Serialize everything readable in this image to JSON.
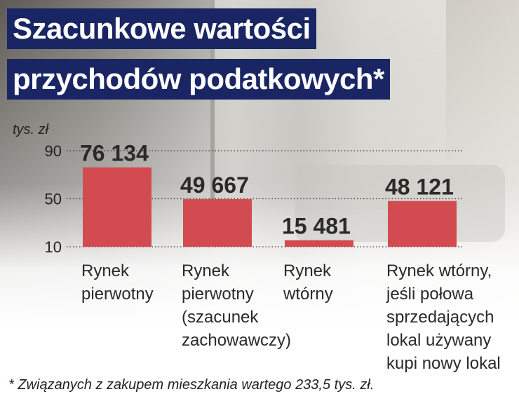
{
  "title_lines": [
    "Szacunkowe wartości",
    "przychodów podatkowych*"
  ],
  "footnote": "* Związanych z zakupem mieszkania wartego 233,5 tys. zł.",
  "colors": {
    "bar": "#d24b50",
    "title_bg": "#1a2563",
    "title_text": "#ffffff"
  },
  "chart_data": {
    "type": "bar",
    "title": "Szacunkowe wartości przychodów podatkowych*",
    "unit_label": "tys. zł",
    "yticks": [
      "90",
      "50",
      "10"
    ],
    "ylim": [
      10,
      90
    ],
    "grid": "dotted horizontal",
    "categories": [
      [
        "Rynek",
        "pierwotny"
      ],
      [
        "Rynek",
        "pierwotny",
        "(szacunek",
        "zachowawczy)"
      ],
      [
        "Rynek",
        "wtórny"
      ],
      [
        "Rynek wtórny,",
        "jeśli połowa",
        "sprzedających",
        "lokal używany",
        "kupi nowy lokal"
      ]
    ],
    "values": [
      76.134,
      49.667,
      15.481,
      48.121
    ],
    "value_labels": [
      "76 134",
      "49 667",
      "15 481",
      "48 121"
    ]
  }
}
